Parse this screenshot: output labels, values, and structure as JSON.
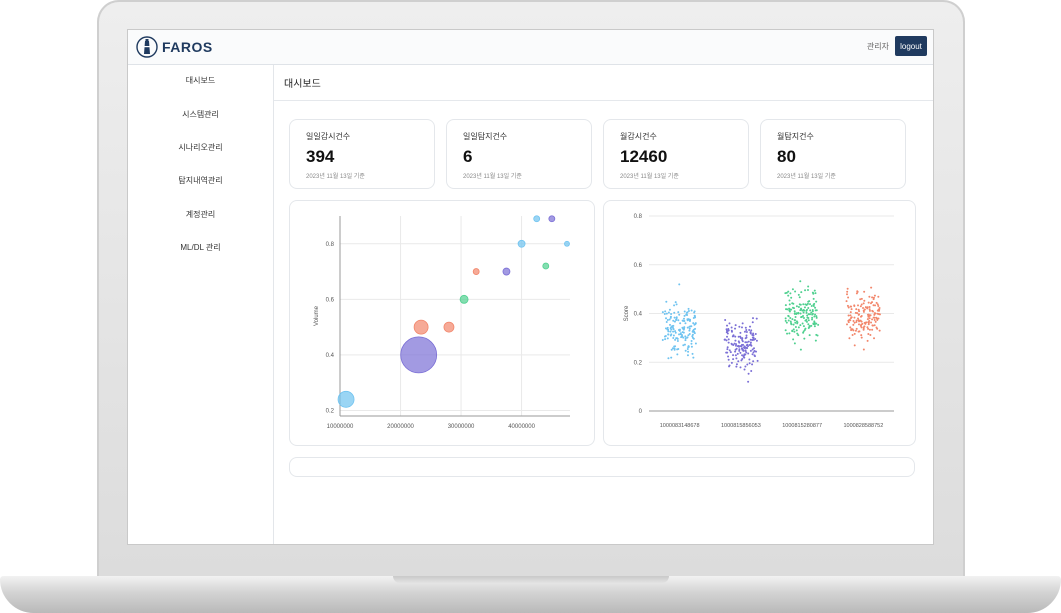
{
  "app": {
    "logo_text": "FAROS",
    "user_name": "관리자",
    "logout_label": "logout"
  },
  "sidebar": {
    "items": [
      {
        "label": "대시보드"
      },
      {
        "label": "시스템관리"
      },
      {
        "label": "시나리오관리"
      },
      {
        "label": "탐지내역관리"
      },
      {
        "label": "계정관리"
      },
      {
        "label": "ML/DL 관리"
      }
    ]
  },
  "main": {
    "title": "대시보드"
  },
  "cards": [
    {
      "label": "일일감시건수",
      "value": "394",
      "date": "2023년 11월 13일 기준"
    },
    {
      "label": "일일탐지건수",
      "value": "6",
      "date": "2023년 11월 13일 기준"
    },
    {
      "label": "월감시건수",
      "value": "12460",
      "date": "2023년 11월 13일 기준"
    },
    {
      "label": "월탐지건수",
      "value": "80",
      "date": "2023년 11월 13일 기준"
    }
  ],
  "colors": {
    "brand": "#1f3a5f",
    "bubble_blue": "#6fc3f0",
    "bubble_purple": "#7b6fd6",
    "bubble_red": "#f2866b",
    "bubble_green": "#4fd08f",
    "grid": "#e9e9e9"
  },
  "chart_data": [
    {
      "type": "scatter",
      "title": "",
      "xlabel": "",
      "ylabel": "Volume",
      "xlim": [
        10000000,
        48000000
      ],
      "ylim": [
        0.18,
        0.9
      ],
      "x_ticks": [
        "10000000",
        "20000000",
        "30000000",
        "40000000"
      ],
      "x_tick_values": [
        10000000,
        20000000,
        30000000,
        40000000
      ],
      "y_ticks": [
        "0.2",
        "0.4",
        "0.6",
        "0.8"
      ],
      "y_tick_values": [
        0.2,
        0.4,
        0.6,
        0.8
      ],
      "points": [
        {
          "x": 11000000,
          "y": 0.24,
          "size": 8,
          "color": "#6fc3f0"
        },
        {
          "x": 23000000,
          "y": 0.4,
          "size": 18,
          "color": "#7b6fd6"
        },
        {
          "x": 23400000,
          "y": 0.5,
          "size": 7,
          "color": "#f2866b"
        },
        {
          "x": 28000000,
          "y": 0.5,
          "size": 5,
          "color": "#f2866b"
        },
        {
          "x": 30500000,
          "y": 0.6,
          "size": 4,
          "color": "#4fd08f"
        },
        {
          "x": 32500000,
          "y": 0.7,
          "size": 3,
          "color": "#f2866b"
        },
        {
          "x": 37500000,
          "y": 0.7,
          "size": 3.5,
          "color": "#7b6fd6"
        },
        {
          "x": 40000000,
          "y": 0.8,
          "size": 3.5,
          "color": "#6fc3f0"
        },
        {
          "x": 42500000,
          "y": 0.89,
          "size": 3,
          "color": "#6fc3f0"
        },
        {
          "x": 44000000,
          "y": 0.72,
          "size": 3,
          "color": "#4fd08f"
        },
        {
          "x": 45000000,
          "y": 0.89,
          "size": 3,
          "color": "#7b6fd6"
        },
        {
          "x": 47500000,
          "y": 0.8,
          "size": 2.5,
          "color": "#6fc3f0"
        }
      ]
    },
    {
      "type": "scatter",
      "title": "",
      "xlabel": "",
      "ylabel": "Score",
      "ylim": [
        0,
        0.8
      ],
      "y_ticks": [
        "0",
        "0.2",
        "0.4",
        "0.6",
        "0.8"
      ],
      "y_tick_values": [
        0,
        0.2,
        0.4,
        0.6,
        0.8
      ],
      "categories": [
        "1000083148678",
        "1000815856053",
        "1000815280877",
        "1000828588752"
      ],
      "series": [
        {
          "name": "1000083148678",
          "color": "#6fc3f0",
          "center": 0.34,
          "spread": 0.09,
          "count": 160
        },
        {
          "name": "1000815856053",
          "color": "#7b6fd6",
          "center": 0.27,
          "spread": 0.09,
          "count": 160
        },
        {
          "name": "1000815280877",
          "color": "#4fd08f",
          "center": 0.39,
          "spread": 0.09,
          "count": 160
        },
        {
          "name": "1000828588752",
          "color": "#f2866b",
          "center": 0.39,
          "spread": 0.09,
          "count": 160
        }
      ]
    }
  ]
}
